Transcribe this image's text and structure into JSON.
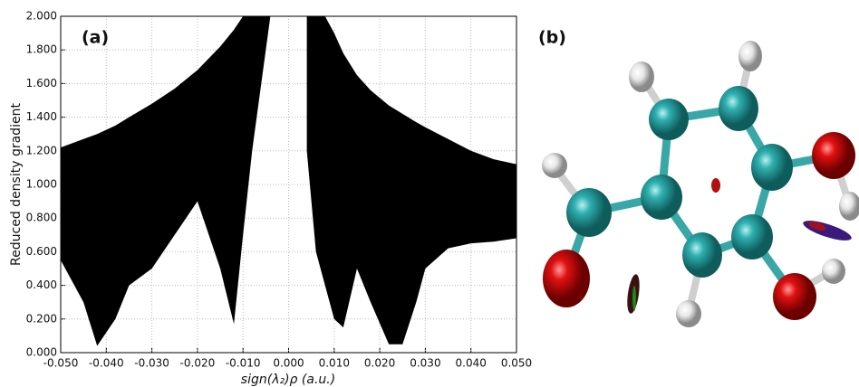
{
  "chart_data": {
    "type": "band",
    "panel_label": "(a)",
    "xlabel": "sign(λ₂)ρ (a.u.)",
    "ylabel": "Reduced density gradient",
    "color": "#000000",
    "grid": true,
    "xlim": [
      -0.05,
      0.05
    ],
    "ylim": [
      0,
      2
    ],
    "xticks": [
      {
        "value": -0.05,
        "label": "-0.050"
      },
      {
        "value": -0.04,
        "label": "-0.040"
      },
      {
        "value": -0.03,
        "label": "-0.030"
      },
      {
        "value": -0.02,
        "label": "-0.020"
      },
      {
        "value": -0.01,
        "label": "-0.010"
      },
      {
        "value": 0,
        "label": "0.000"
      },
      {
        "value": 0.01,
        "label": "0.010"
      },
      {
        "value": 0.02,
        "label": "0.020"
      },
      {
        "value": 0.03,
        "label": "0.030"
      },
      {
        "value": 0.04,
        "label": "0.040"
      },
      {
        "value": 0.05,
        "label": "0.050"
      }
    ],
    "yticks": [
      {
        "value": 0,
        "label": "0.000"
      },
      {
        "value": 0.2,
        "label": "0.200"
      },
      {
        "value": 0.4,
        "label": "0.400"
      },
      {
        "value": 0.6,
        "label": "0.600"
      },
      {
        "value": 0.8,
        "label": "0.800"
      },
      {
        "value": 1,
        "label": "1.000"
      },
      {
        "value": 1.2,
        "label": "1.200"
      },
      {
        "value": 1.4,
        "label": "1.400"
      },
      {
        "value": 1.6,
        "label": "1.600"
      },
      {
        "value": 1.8,
        "label": "1.800"
      },
      {
        "value": 2,
        "label": "2.000"
      }
    ],
    "x": [
      -0.05,
      -0.045,
      -0.042,
      -0.038,
      -0.035,
      -0.03,
      -0.025,
      -0.02,
      -0.015,
      -0.012,
      -0.01,
      -0.008,
      -0.006,
      -0.004,
      0,
      0.004,
      0.006,
      0.008,
      0.01,
      0.012,
      0.015,
      0.018,
      0.022,
      0.025,
      0.028,
      0.03,
      0.035,
      0.04,
      0.045,
      0.05
    ],
    "upper": [
      1.22,
      1.27,
      1.3,
      1.35,
      1.4,
      1.48,
      1.57,
      1.68,
      1.82,
      1.92,
      2,
      2,
      2,
      2,
      null,
      2,
      2,
      2,
      1.9,
      1.78,
      1.65,
      1.56,
      1.47,
      1.42,
      1.37,
      1.34,
      1.27,
      1.2,
      1.15,
      1.12
    ],
    "lower": [
      0.55,
      0.3,
      0.04,
      0.2,
      0.4,
      0.5,
      0.7,
      0.9,
      0.5,
      0.17,
      0.7,
      1.2,
      1.6,
      2,
      null,
      1.2,
      0.6,
      0.4,
      0.2,
      0.15,
      0.5,
      0.3,
      0.05,
      0.05,
      0.3,
      0.5,
      0.62,
      0.65,
      0.66,
      0.68
    ]
  },
  "panel_b": {
    "label": "(b)"
  }
}
